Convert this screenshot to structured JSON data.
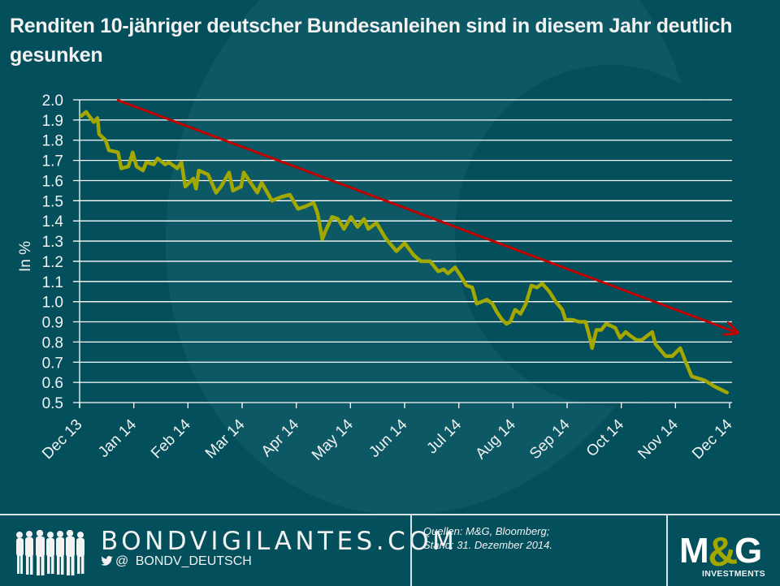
{
  "title": "Renditen 10-jähriger deutscher Bundesanleihen sind in diesem Jahr deutlich gesunken",
  "chart_data": {
    "type": "line",
    "title": "Renditen 10-jähriger deutscher Bundesanleihen sind in diesem Jahr deutlich gesunken",
    "xlabel": "",
    "ylabel": "In %",
    "ylim": [
      0.5,
      2.0
    ],
    "yticks": [
      "2.0",
      "1.9",
      "1.8",
      "1.7",
      "1.6",
      "1.5",
      "1.4",
      "1.3",
      "1.2",
      "1.1",
      "1.0",
      "0.9",
      "0.8",
      "0.7",
      "0.6",
      "0.5"
    ],
    "xticks": [
      "Dec 13",
      "Jan 14",
      "Feb 14",
      "Mar 14",
      "Apr 14",
      "May 14",
      "Jun 14",
      "Jul 14",
      "Aug 14",
      "Sep 14",
      "Oct 14",
      "Nov 14",
      "Dec 14"
    ],
    "x_unit": "months since Dec 13",
    "grid": true,
    "legend": "none",
    "series": [
      {
        "name": "Rendite 10-jährige Bundesanleihe",
        "color": "#a3a800",
        "x": [
          0.03,
          0.12,
          0.26,
          0.33,
          0.36,
          0.48,
          0.54,
          0.71,
          0.77,
          0.9,
          0.98,
          1.05,
          1.17,
          1.23,
          1.37,
          1.44,
          1.58,
          1.65,
          1.8,
          1.88,
          1.95,
          2.1,
          2.15,
          2.2,
          2.37,
          2.52,
          2.61,
          2.76,
          2.83,
          2.98,
          3.03,
          3.28,
          3.36,
          3.55,
          3.73,
          3.88,
          4.03,
          4.15,
          4.32,
          4.39,
          4.48,
          4.54,
          4.66,
          4.77,
          4.88,
          5.01,
          5.13,
          5.25,
          5.33,
          5.48,
          5.66,
          5.85,
          6.0,
          6.17,
          6.3,
          6.47,
          6.62,
          6.72,
          6.8,
          6.93,
          7.03,
          7.14,
          7.25,
          7.33,
          7.52,
          7.62,
          7.7,
          7.8,
          7.88,
          7.95,
          8.04,
          8.14,
          8.24,
          8.34,
          8.44,
          8.54,
          8.67,
          8.79,
          8.91,
          8.97,
          9.1,
          9.22,
          9.34,
          9.42,
          9.46,
          9.54,
          9.63,
          9.72,
          9.81,
          9.89,
          9.98,
          10.08,
          10.17,
          10.28,
          10.38,
          10.57,
          10.63,
          10.82,
          10.94,
          11.09,
          11.19,
          11.3,
          11.42,
          11.54,
          11.72,
          11.95
        ],
        "values": [
          1.92,
          1.94,
          1.89,
          1.91,
          1.83,
          1.8,
          1.75,
          1.74,
          1.66,
          1.67,
          1.74,
          1.67,
          1.65,
          1.69,
          1.68,
          1.71,
          1.68,
          1.69,
          1.66,
          1.69,
          1.57,
          1.61,
          1.56,
          1.65,
          1.63,
          1.54,
          1.57,
          1.64,
          1.55,
          1.57,
          1.64,
          1.54,
          1.59,
          1.5,
          1.52,
          1.53,
          1.46,
          1.47,
          1.49,
          1.44,
          1.31,
          1.35,
          1.42,
          1.41,
          1.36,
          1.42,
          1.37,
          1.41,
          1.36,
          1.39,
          1.31,
          1.25,
          1.29,
          1.23,
          1.2,
          1.2,
          1.15,
          1.16,
          1.14,
          1.17,
          1.13,
          1.08,
          1.07,
          0.99,
          1.01,
          0.99,
          0.95,
          0.91,
          0.89,
          0.9,
          0.96,
          0.94,
          0.99,
          1.08,
          1.07,
          1.09,
          1.05,
          1.0,
          0.96,
          0.91,
          0.91,
          0.9,
          0.9,
          0.82,
          0.77,
          0.86,
          0.86,
          0.89,
          0.88,
          0.87,
          0.82,
          0.85,
          0.83,
          0.81,
          0.81,
          0.85,
          0.79,
          0.73,
          0.73,
          0.77,
          0.7,
          0.63,
          0.62,
          0.61,
          0.58,
          0.55
        ]
      }
    ],
    "annotations": [
      {
        "type": "trend-arrow",
        "color": "#c00000",
        "from": {
          "x": 0.69,
          "y": 2.0
        },
        "to": {
          "x": 12.1,
          "y": 0.85
        }
      }
    ]
  },
  "footer": {
    "brand": "BONDVIGILANTES.COM",
    "twitter_at": "@",
    "twitter_handle": "BONDV_DEUTSCH",
    "source_line1": "Quellen: M&G, Bloomberg;",
    "source_line2": "Stand: 31. Dezember 2014.",
    "logo_text": "M&G",
    "logo_sub": "INVESTMENTS"
  },
  "colors": {
    "background": "#034f5c",
    "line": "#a3a800",
    "arrow": "#c00000",
    "grid": "#ffffff",
    "text": "#f2f2f2"
  }
}
